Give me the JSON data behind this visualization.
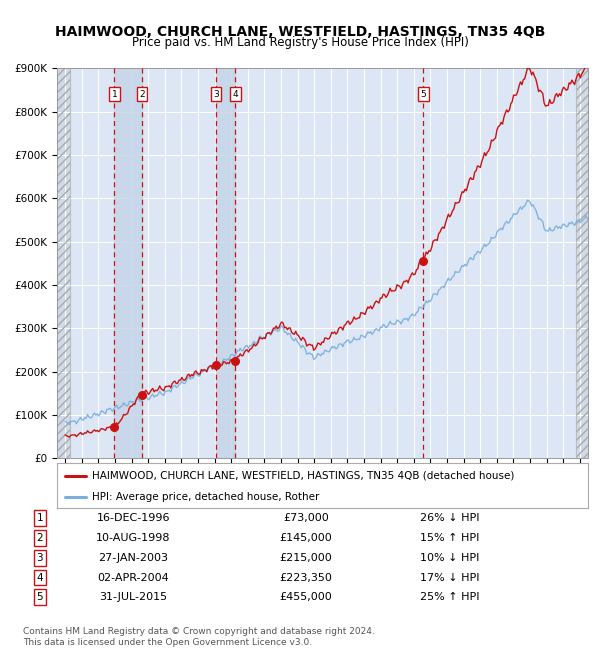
{
  "title": "HAIMWOOD, CHURCH LANE, WESTFIELD, HASTINGS, TN35 4QB",
  "subtitle": "Price paid vs. HM Land Registry's House Price Index (HPI)",
  "property_label": "HAIMWOOD, CHURCH LANE, WESTFIELD, HASTINGS, TN35 4QB (detached house)",
  "hpi_label": "HPI: Average price, detached house, Rother",
  "footer1": "Contains HM Land Registry data © Crown copyright and database right 2024.",
  "footer2": "This data is licensed under the Open Government Licence v3.0.",
  "sales": [
    {
      "num": 1,
      "date": "16-DEC-1996",
      "price": 73000,
      "pct": "26%",
      "dir": "↓",
      "year": 1996.958
    },
    {
      "num": 2,
      "date": "10-AUG-1998",
      "price": 145000,
      "pct": "15%",
      "dir": "↑",
      "year": 1998.611
    },
    {
      "num": 3,
      "date": "27-JAN-2003",
      "price": 215000,
      "pct": "10%",
      "dir": "↓",
      "year": 2003.074
    },
    {
      "num": 4,
      "date": "02-APR-2004",
      "price": 223350,
      "pct": "17%",
      "dir": "↓",
      "year": 2004.253
    },
    {
      "num": 5,
      "date": "31-JUL-2015",
      "price": 455000,
      "pct": "25%",
      "dir": "↑",
      "year": 2015.581
    }
  ],
  "ylim": [
    0,
    900000
  ],
  "yticks": [
    0,
    100000,
    200000,
    300000,
    400000,
    500000,
    600000,
    700000,
    800000,
    900000
  ],
  "xlim_start": 1993.5,
  "xlim_end": 2025.5,
  "hatch_left_end": 1994.3,
  "hatch_right_start": 2024.75,
  "property_color": "#cc1111",
  "hpi_color": "#7aaedc",
  "background_color": "#dde6f5",
  "grid_color": "#ffffff",
  "vline_color": "#cc1111",
  "vband_color": "#c5d5e8",
  "title_fontsize": 10,
  "subtitle_fontsize": 8.5,
  "legend_fontsize": 7.5,
  "table_fontsize": 8,
  "footer_fontsize": 6.5
}
